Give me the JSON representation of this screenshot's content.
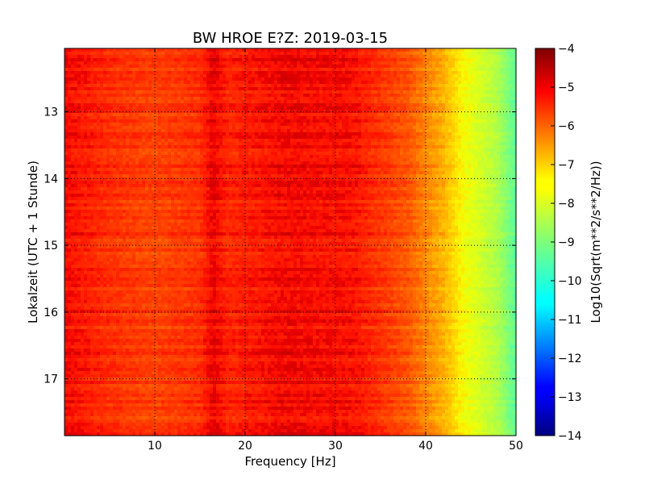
{
  "chart_data": {
    "type": "heatmap",
    "title": "BW HROE E?Z: 2019-03-15",
    "xlabel": "Frequency [Hz]",
    "ylabel": "Lokalzeit (UTC + 1 Stunde)",
    "colorbar_label": "Log10(Sqrt(m**2/s**2/Hz))",
    "colormap": "jet",
    "xlim": [
      0,
      50
    ],
    "ylim": [
      17.85,
      12.05
    ],
    "x_ticks": [
      10,
      20,
      30,
      40,
      50
    ],
    "x_tick_labels": [
      "10",
      "20",
      "30",
      "40",
      "50"
    ],
    "y_ticks": [
      13,
      14,
      15,
      16,
      17
    ],
    "y_tick_labels": [
      "13",
      "14",
      "15",
      "16",
      "17"
    ],
    "color_range": [
      -14,
      -4
    ],
    "colorbar_ticks": [
      -4,
      -5,
      -6,
      -7,
      -8,
      -9,
      -10,
      -11,
      -12,
      -13,
      -14
    ],
    "colorbar_tick_labels": [
      "−4",
      "−5",
      "−6",
      "−7",
      "−8",
      "−9",
      "−10",
      "−11",
      "−12",
      "−13",
      "−14"
    ],
    "grid": true,
    "spectrum_profile": {
      "frequency_hz": [
        0,
        5,
        10,
        15,
        16.5,
        18,
        24.5,
        32,
        38,
        42,
        44,
        46,
        48,
        50
      ],
      "log10_amplitude": [
        -5.0,
        -5.4,
        -5.6,
        -5.4,
        -4.9,
        -5.3,
        -5.0,
        -5.1,
        -5.8,
        -6.8,
        -7.5,
        -7.9,
        -8.4,
        -9.4
      ]
    }
  }
}
